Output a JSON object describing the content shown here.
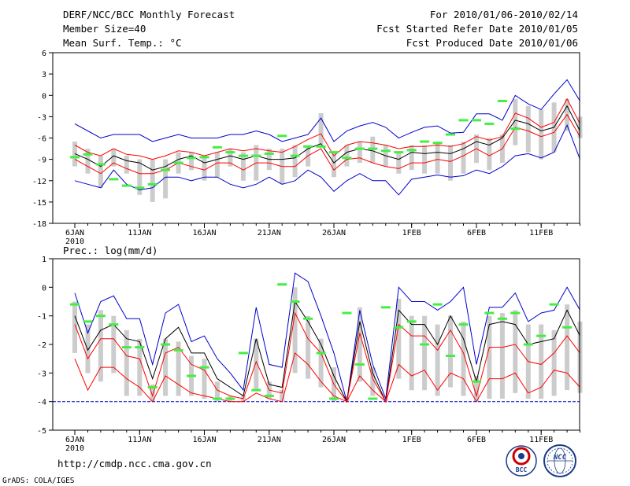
{
  "header": {
    "title": "DERF/NCC/BCC Monthly Forecast",
    "member_size": "Member Size=40",
    "variable": "Mean Surf. Temp.: °C",
    "period": "For 2010/01/06-2010/02/14",
    "fcst_started": "Fcst Started Refer Date 2010/01/05",
    "fcst_produced": "Fcst Produced Date 2010/01/06"
  },
  "footer": {
    "url": "http://cmdp.ncc.cma.gov.cn",
    "credit": "GrADS: COLA/IGES",
    "logo_bcc": "BCC",
    "logo_ncc": "NCC"
  },
  "colors": {
    "mean": "#000000",
    "spread": "#ff0000",
    "extreme": "#0000cc",
    "box": "#cccccc",
    "marker": "#44ee44",
    "base": "#0000cc"
  },
  "chart_data": [
    {
      "type": "line",
      "title": "Mean Surf. Temp.: °C",
      "ylim": [
        -18,
        6
      ],
      "yticks": [
        6,
        3,
        0,
        -3,
        -6,
        -9,
        -12,
        -15,
        -18
      ],
      "x_tick_labels": [
        "6JAN",
        "11JAN",
        "16JAN",
        "21JAN",
        "26JAN",
        "1FEB",
        "6FEB",
        "11FEB"
      ],
      "x_tick_days": [
        1,
        6,
        11,
        16,
        21,
        27,
        32,
        37
      ],
      "year_label": "2010",
      "days": [
        1,
        2,
        3,
        4,
        5,
        6,
        7,
        8,
        9,
        10,
        11,
        12,
        13,
        14,
        15,
        16,
        17,
        18,
        19,
        20,
        21,
        22,
        23,
        24,
        25,
        26,
        27,
        28,
        29,
        30,
        31,
        32,
        33,
        34,
        35,
        36,
        37,
        38,
        39,
        40
      ],
      "series": [
        {
          "name": "max",
          "values": [
            -4,
            -5,
            -6,
            -5.5,
            -5.5,
            -5.5,
            -6.5,
            -6,
            -5.5,
            -6,
            -6,
            -6,
            -5.5,
            -5.5,
            -5,
            -5.5,
            -6.5,
            -6,
            -5.5,
            -3.2,
            -6.5,
            -5,
            -4.3,
            -3.8,
            -4.5,
            -6,
            -5.2,
            -4.5,
            -4.3,
            -5.3,
            -5.2,
            -2.6,
            -2.6,
            -3.5,
            0,
            -1.2,
            -2,
            0.2,
            2.2,
            -0.8
          ]
        },
        {
          "name": "upper",
          "values": [
            -7,
            -8,
            -8.5,
            -7.5,
            -8.3,
            -8.5,
            -9,
            -8.5,
            -7.8,
            -8,
            -8.5,
            -8,
            -7.5,
            -7.8,
            -7.5,
            -7.8,
            -8,
            -7.2,
            -6.2,
            -5.4,
            -8.5,
            -7,
            -6.5,
            -6.7,
            -7,
            -7.5,
            -7.2,
            -7.2,
            -7,
            -7.2,
            -6.8,
            -5.8,
            -6.3,
            -5.8,
            -2.5,
            -3.2,
            -4.5,
            -3.8,
            -0.5,
            -4
          ]
        },
        {
          "name": "mean",
          "values": [
            -8.2,
            -9,
            -10,
            -8.5,
            -9.2,
            -9.5,
            -10.5,
            -10,
            -9,
            -8.5,
            -9.5,
            -9,
            -8.5,
            -9,
            -8.5,
            -9,
            -9,
            -8.8,
            -7.5,
            -6.8,
            -9.5,
            -8,
            -7.5,
            -7.8,
            -8.5,
            -9,
            -8,
            -8.2,
            -8,
            -8.2,
            -7.5,
            -6.5,
            -7,
            -6,
            -3.5,
            -4,
            -5,
            -4.5,
            -1.5,
            -5
          ]
        },
        {
          "name": "lower",
          "values": [
            -9,
            -10,
            -11,
            -9.5,
            -10.3,
            -11,
            -11,
            -10.5,
            -9.5,
            -10,
            -10.5,
            -9.5,
            -9.5,
            -10.5,
            -9.5,
            -9.5,
            -10,
            -10,
            -8.5,
            -7.5,
            -10.5,
            -9,
            -8.8,
            -9.5,
            -10,
            -10.3,
            -9.5,
            -9.5,
            -9,
            -9.3,
            -8.5,
            -7.5,
            -8.5,
            -7.5,
            -4.5,
            -5,
            -5.8,
            -5.2,
            -2.7,
            -5.8
          ]
        },
        {
          "name": "min",
          "values": [
            -12,
            -12.5,
            -13,
            -10.5,
            -12.5,
            -13.3,
            -13,
            -11.5,
            -11.5,
            -12,
            -11.5,
            -11.5,
            -12.5,
            -13,
            -12.5,
            -11.5,
            -12.5,
            -12,
            -10.5,
            -11.5,
            -13.5,
            -12,
            -11,
            -12,
            -12,
            -14,
            -11.8,
            -11.5,
            -11.2,
            -11.5,
            -11.3,
            -10.5,
            -11,
            -10,
            -8.5,
            -8.2,
            -8.8,
            -8,
            -4.2,
            -9
          ]
        }
      ],
      "box_top": [
        -6.5,
        -7.5,
        -8.5,
        -7.5,
        -8.5,
        -9,
        -9,
        -9,
        -8,
        -8,
        -8.5,
        -8,
        -7.5,
        -8,
        -7,
        -7.5,
        -7.5,
        -7,
        -7,
        -2.5,
        -8,
        -7,
        -6.5,
        -5.8,
        -7,
        -8,
        -7,
        -7,
        -6.5,
        -7,
        -6.5,
        -5.5,
        -6,
        -5.5,
        -0.5,
        -1.5,
        -2,
        -1,
        -0.5,
        -3
      ],
      "box_bottom": [
        -10,
        -11,
        -13,
        -10,
        -11,
        -14,
        -15,
        -14.5,
        -11,
        -10.5,
        -12,
        -11.5,
        -10,
        -12,
        -12,
        -10.5,
        -12.5,
        -11.5,
        -10,
        -7,
        -11.5,
        -10,
        -9.5,
        -9.5,
        -10,
        -11,
        -10.5,
        -11,
        -11,
        -12,
        -11,
        -9.5,
        -10.5,
        -9.5,
        -7,
        -8,
        -9,
        -8,
        -5,
        -6
      ],
      "observed": [
        -8.7,
        -8.3,
        -9.7,
        -11.8,
        -12.7,
        -13,
        -12.5,
        -10.5,
        -9.5,
        -8.8,
        -8.7,
        -7.3,
        -8,
        -8.5,
        -8.5,
        -8.2,
        -5.7,
        -8.5,
        -7.2,
        -7.2,
        -8,
        -8.8,
        -7.5,
        -7.5,
        -7.8,
        -8,
        -7.7,
        -6.5,
        -6.7,
        -5.5,
        -3.5,
        -3.5,
        -4,
        -0.8,
        -4.7
      ]
    },
    {
      "type": "line",
      "title": "Prec.: log(mm/d)",
      "ylim": [
        -5,
        1
      ],
      "yticks": [
        1,
        0,
        -1,
        -2,
        -3,
        -4,
        -5
      ],
      "x_tick_labels": [
        "6JAN",
        "11JAN",
        "16JAN",
        "21JAN",
        "26JAN",
        "1FEB",
        "6FEB",
        "11FEB"
      ],
      "x_tick_days": [
        1,
        6,
        11,
        16,
        21,
        27,
        32,
        37
      ],
      "year_label": "2010",
      "baseline": -4,
      "days": [
        1,
        2,
        3,
        4,
        5,
        6,
        7,
        8,
        9,
        10,
        11,
        12,
        13,
        14,
        15,
        16,
        17,
        18,
        19,
        20,
        21,
        22,
        23,
        24,
        25,
        26,
        27,
        28,
        29,
        30,
        31,
        32,
        33,
        34,
        35,
        36,
        37,
        38,
        39,
        40
      ],
      "series": [
        {
          "name": "max",
          "values": [
            -0.2,
            -1.6,
            -0.5,
            -0.3,
            -1.1,
            -1.1,
            -2.7,
            -0.9,
            -0.6,
            -1.9,
            -1.7,
            -2.5,
            -3,
            -3.6,
            -0.7,
            -2.7,
            -2.8,
            0.5,
            0.2,
            -1,
            -2.3,
            -4,
            -0.8,
            -2.7,
            -3.9,
            0,
            -0.5,
            -0.5,
            -0.8,
            -0.5,
            0,
            -2.7,
            -0.7,
            -0.7,
            -0.2,
            -1.2,
            -0.9,
            -0.8,
            0,
            -0.8
          ]
        },
        {
          "name": "mean",
          "values": [
            -1,
            -2.2,
            -1.5,
            -1.3,
            -1.8,
            -1.9,
            -3.2,
            -1.8,
            -1.4,
            -2.3,
            -2.3,
            -3.2,
            -3.5,
            -3.8,
            -1.8,
            -3.4,
            -3.5,
            -0.5,
            -1.2,
            -2,
            -3.1,
            -4,
            -1.2,
            -3,
            -4,
            -0.8,
            -1.3,
            -1.3,
            -2,
            -1,
            -1.8,
            -3.3,
            -1.3,
            -1.2,
            -1.3,
            -2,
            -1.9,
            -1.8,
            -0.8,
            -1.7
          ]
        },
        {
          "name": "upper",
          "values": [
            -1.3,
            -2.5,
            -1.8,
            -1.8,
            -2.4,
            -2.5,
            -3.8,
            -2.3,
            -2.1,
            -2.7,
            -2.9,
            -3.6,
            -3.8,
            -3.9,
            -2.6,
            -3.6,
            -3.7,
            -0.9,
            -1.8,
            -2.3,
            -3.4,
            -4,
            -1.6,
            -3.2,
            -4,
            -1.3,
            -1.7,
            -1.7,
            -2.2,
            -1.5,
            -2.3,
            -3.8,
            -2.1,
            -2.1,
            -2,
            -2.6,
            -2.7,
            -2.3,
            -1.7,
            -2.3
          ]
        },
        {
          "name": "lower",
          "values": [
            -2.5,
            -3.6,
            -2.8,
            -2.8,
            -3.2,
            -3.5,
            -4,
            -3.1,
            -3.4,
            -3.7,
            -3.8,
            -3.9,
            -4,
            -4,
            -3.7,
            -3.9,
            -4,
            -2.3,
            -2.7,
            -3.3,
            -3.8,
            -4,
            -3.1,
            -3.6,
            -4,
            -2.7,
            -3.1,
            -2.9,
            -3.6,
            -3,
            -3.2,
            -4,
            -3.2,
            -3.2,
            -3,
            -3.7,
            -3.5,
            -2.9,
            -3,
            -3.5
          ]
        }
      ],
      "box_top": [
        -0.5,
        -1.3,
        -0.8,
        -1,
        -1.5,
        -1.8,
        -3.4,
        -1.8,
        -1.9,
        -2.4,
        -2.5,
        -3.3,
        -3.8,
        -3.8,
        -1.8,
        -3.3,
        -3.6,
        0,
        -1,
        -1.8,
        -2.8,
        -3.8,
        -0.7,
        -2.8,
        -3.9,
        -0.4,
        -1,
        -1,
        -1.3,
        -1,
        -1.2,
        -3.1,
        -1,
        -0.9,
        -0.8,
        -1.3,
        -1.3,
        -1.5,
        -0.6,
        -1.2
      ],
      "box_bottom": [
        -2.3,
        -3,
        -3.3,
        -3,
        -3.8,
        -3.8,
        -4,
        -3.8,
        -3.8,
        -3.8,
        -3.9,
        -4,
        -4,
        -4,
        -3.6,
        -3.9,
        -4,
        -3,
        -3.2,
        -3.5,
        -4,
        -4,
        -3.3,
        -3.8,
        -4,
        -3.2,
        -3.6,
        -3.6,
        -3.8,
        -3.5,
        -3.8,
        -4,
        -3.9,
        -3.9,
        -3.7,
        -3.9,
        -3.9,
        -3.8,
        -3.6,
        -3.7
      ],
      "observed": [
        -0.6,
        -1.2,
        -1,
        -1.3,
        -2.1,
        -2.1,
        -3.5,
        -2,
        -2.2,
        -3.1,
        -2.8,
        -3.9,
        -3.9,
        -2.3,
        -3.6,
        -3.8,
        0.1,
        -0.5,
        -1.1,
        -2.3,
        -3.9,
        -0.9,
        -2.7,
        -3.9,
        -0.7,
        -1.4,
        -1.2,
        -2,
        -0.6,
        -2.4,
        -1.3,
        -3.3,
        -0.9,
        -1.1,
        -0.9,
        -2,
        -1.7,
        -0.6,
        -1.4
      ]
    }
  ]
}
